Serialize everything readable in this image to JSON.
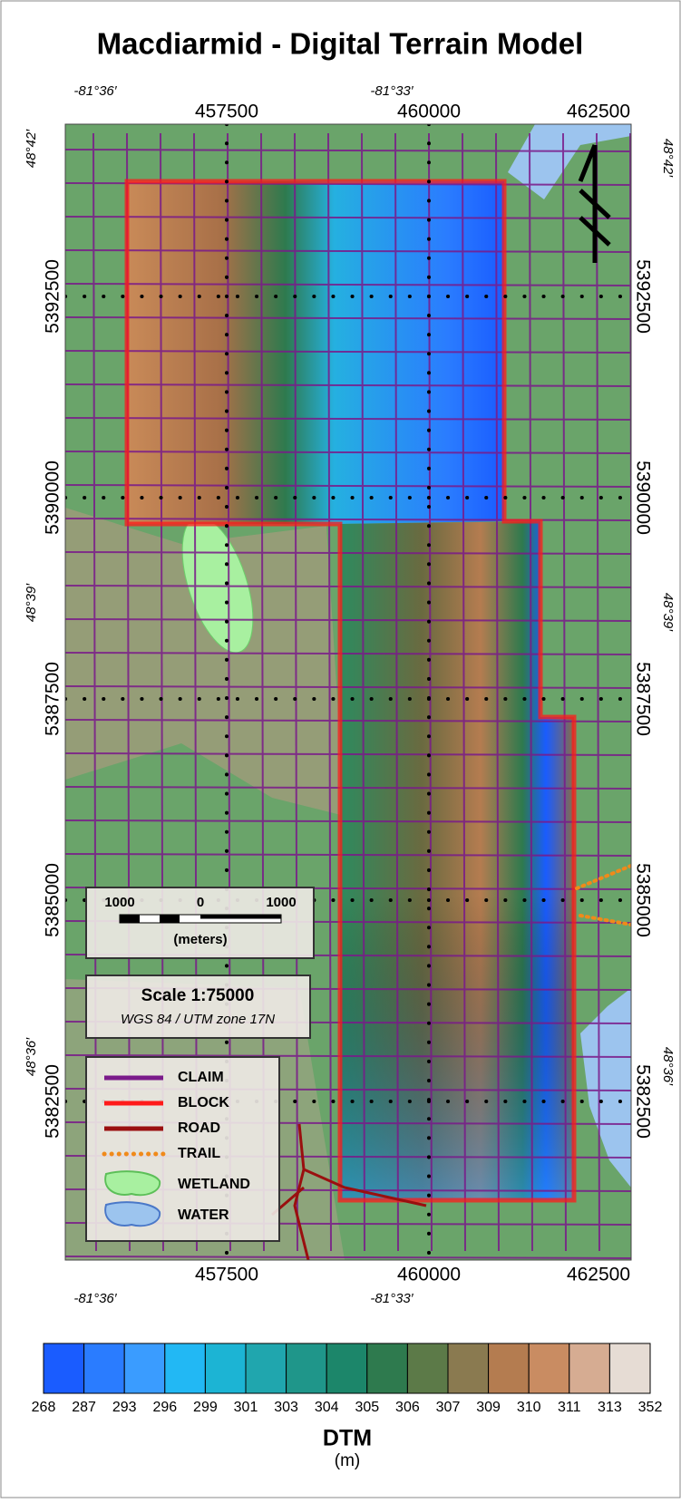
{
  "title": "Macdiarmid - Digital Terrain Model",
  "graticule": {
    "longitudes": [
      "-81°36′",
      "-81°33′"
    ],
    "latitudes": [
      "48°42′",
      "48°39′",
      "48°36′"
    ]
  },
  "utm": {
    "eastings": [
      457500,
      460000,
      462500
    ],
    "northings": [
      5392500,
      5390000,
      5387500,
      5385000,
      5382500
    ]
  },
  "scale_bar": {
    "labels": [
      "1000",
      "0",
      "1000"
    ],
    "unit": "(meters)"
  },
  "projection": {
    "scale": "Scale 1:75000",
    "datum": "WGS 84 / UTM zone 17N"
  },
  "legend": [
    {
      "label": "CLAIM",
      "color": "#7a1a8a"
    },
    {
      "label": "BLOCK",
      "color": "#ff1a1a"
    },
    {
      "label": "ROAD",
      "color": "#9a0f0f"
    },
    {
      "label": "TRAIL",
      "color": "#f08a1a"
    },
    {
      "label": "WETLAND",
      "color": "#a8f0a0"
    },
    {
      "label": "WATER",
      "color": "#9cc4ee"
    }
  ],
  "colorbar": {
    "title": "DTM",
    "unit": "(m)",
    "labels": [
      268,
      287,
      293,
      296,
      299,
      301,
      303,
      304,
      305,
      306,
      307,
      309,
      310,
      311,
      313,
      352
    ],
    "colors": [
      "#1a5cff",
      "#2a7cff",
      "#3a9cff",
      "#22b8f4",
      "#1cb4d4",
      "#20a6ae",
      "#1f968a",
      "#1c866a",
      "#2e7a4e",
      "#5c7a48",
      "#8a7a50",
      "#b47c50",
      "#c98c62",
      "#d6ac92",
      "#e6dcd4"
    ]
  }
}
